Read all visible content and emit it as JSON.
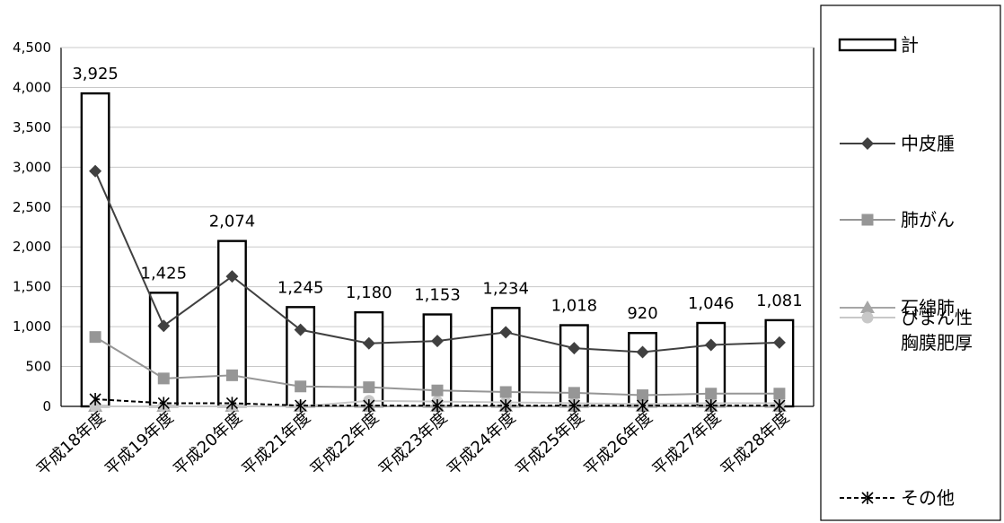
{
  "chart_data": {
    "type": "bar",
    "categories": [
      "平成18年度",
      "平成19年度",
      "平成20年度",
      "平成21年度",
      "平成22年度",
      "平成23年度",
      "平成24年度",
      "平成25年度",
      "平成26年度",
      "平成27年度",
      "平成28年度"
    ],
    "ylim": [
      0,
      4500
    ],
    "yticks": [
      "0",
      "500",
      "1,000",
      "1,500",
      "2,000",
      "2,500",
      "3,000",
      "3,500",
      "4,000",
      "4,500"
    ],
    "grid": true,
    "legend_position": "right",
    "total": {
      "name": "計",
      "values": [
        3925,
        1425,
        2074,
        1245,
        1180,
        1153,
        1234,
        1018,
        920,
        1046,
        1081
      ],
      "labels": [
        "3,925",
        "1,425",
        "2,074",
        "1,245",
        "1,180",
        "1,153",
        "1,234",
        "1,018",
        "920",
        "1,046",
        "1,081"
      ]
    },
    "series": [
      {
        "name": "中皮腫",
        "type": "line",
        "marker": "diamond",
        "color": "#404040",
        "values": [
          2950,
          1010,
          1630,
          960,
          790,
          820,
          930,
          730,
          680,
          770,
          800
        ]
      },
      {
        "name": "肺がん",
        "type": "line",
        "marker": "square",
        "color": "#969696",
        "values": [
          870,
          350,
          390,
          250,
          240,
          200,
          180,
          170,
          140,
          160,
          160
        ]
      },
      {
        "name": "石綿肺",
        "type": "line",
        "marker": "triangle",
        "color": "#a6a6a6",
        "values": [
          0,
          0,
          0,
          0,
          0,
          0,
          0,
          0,
          0,
          0,
          0
        ]
      },
      {
        "name_lines": [
          "びまん性",
          "胸膜肥厚"
        ],
        "type": "line",
        "marker": "circle",
        "color": "#c8c8c8",
        "values": [
          0,
          0,
          0,
          0,
          70,
          60,
          50,
          40,
          30,
          40,
          40
        ]
      },
      {
        "name": "その他",
        "type": "line",
        "marker": "star",
        "color": "#000000",
        "dashed": true,
        "values": [
          90,
          40,
          40,
          10,
          10,
          10,
          10,
          10,
          10,
          10,
          10
        ]
      }
    ]
  }
}
